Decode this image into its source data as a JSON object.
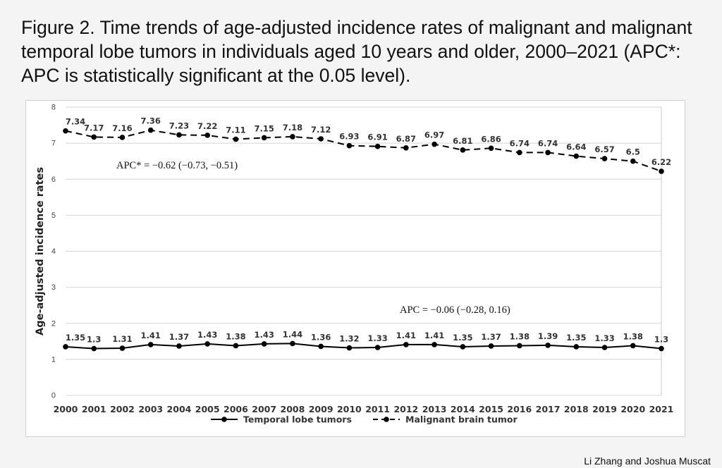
{
  "figure": {
    "caption": "Figure 2. Time trends of age-adjusted incidence rates of malignant and malignant temporal lobe tumors in individuals aged 10 years and older, 2000–2021 (APC*: APC is statistically significant at the 0.05 level).",
    "credit": "Li Zhang and Joshua Muscat"
  },
  "chart_data": {
    "type": "line",
    "title": "",
    "xlabel": "",
    "ylabel": "Age-adjusted incidence rates",
    "ylim": [
      0,
      8
    ],
    "yticks": [
      0,
      1,
      2,
      3,
      4,
      5,
      6,
      7,
      8
    ],
    "grid": true,
    "legend_position": "bottom",
    "x": [
      "2000",
      "2001",
      "2002",
      "2003",
      "2004",
      "2005",
      "2006",
      "2007",
      "2008",
      "2009",
      "2010",
      "2011",
      "2012",
      "2013",
      "2014",
      "2015",
      "2016",
      "2017",
      "2018",
      "2019",
      "2020",
      "2021"
    ],
    "series": [
      {
        "name": "Temporal lobe tumors",
        "style": "solid",
        "color": "#000000",
        "values": [
          1.35,
          1.3,
          1.31,
          1.41,
          1.37,
          1.43,
          1.38,
          1.43,
          1.44,
          1.36,
          1.32,
          1.33,
          1.41,
          1.41,
          1.35,
          1.37,
          1.38,
          1.39,
          1.35,
          1.33,
          1.38,
          1.3
        ],
        "labels": [
          "1.35",
          "1.3",
          "1.31",
          "1.41",
          "1.37",
          "1.43",
          "1.38",
          "1.43",
          "1.44",
          "1.36",
          "1.32",
          "1.33",
          "1.41",
          "1.41",
          "1.35",
          "1.37",
          "1.38",
          "1.39",
          "1.35",
          "1.33",
          "1.38",
          "1.3"
        ]
      },
      {
        "name": "Malignant brain tumor",
        "style": "dashed",
        "color": "#000000",
        "values": [
          7.34,
          7.17,
          7.16,
          7.36,
          7.23,
          7.22,
          7.11,
          7.15,
          7.18,
          7.12,
          6.93,
          6.91,
          6.87,
          6.97,
          6.81,
          6.86,
          6.74,
          6.74,
          6.64,
          6.57,
          6.5,
          6.22
        ],
        "labels": [
          "7.34",
          "7.17",
          "7.16",
          "7.36",
          "7.23",
          "7.22",
          "7.11",
          "7.15",
          "7.18",
          "7.12",
          "6.93",
          "6.91",
          "6.87",
          "6.97",
          "6.81",
          "6.86",
          "6.74",
          "6.74",
          "6.64",
          "6.57",
          "6.5",
          "6.22"
        ]
      }
    ],
    "annotations": [
      {
        "text": "APC* = −0.62 (−0.73, −0.51)",
        "series": "Malignant brain tumor"
      },
      {
        "text": "APC = −0.06 (−0.28, 0.16)",
        "series": "Temporal lobe tumors"
      }
    ]
  }
}
